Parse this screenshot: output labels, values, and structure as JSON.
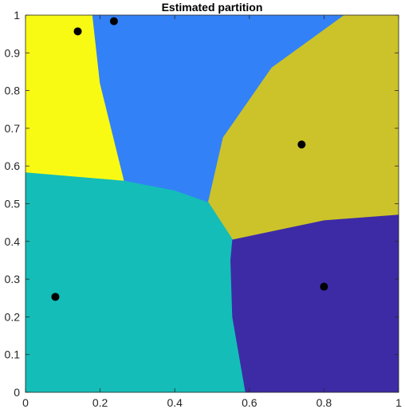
{
  "chart_data": {
    "type": "heatmap",
    "title": "Estimated partition",
    "xlabel": "",
    "ylabel": "",
    "xlim": [
      0,
      1
    ],
    "ylim": [
      0,
      1
    ],
    "x_ticks": [
      0,
      0.2,
      0.4,
      0.6,
      0.8,
      1
    ],
    "x_tick_labels": [
      "0",
      "0.2",
      "0.4",
      "0.6",
      "0.8",
      "1"
    ],
    "y_ticks": [
      0,
      0.1,
      0.2,
      0.3,
      0.4,
      0.5,
      0.6,
      0.7,
      0.8,
      0.9,
      1
    ],
    "y_tick_labels": [
      "0",
      "0.1",
      "0.2",
      "0.3",
      "0.4",
      "0.5",
      "0.6",
      "0.7",
      "0.8",
      "0.9",
      "1"
    ],
    "grid": false,
    "regions": [
      {
        "color": "#F9FA14",
        "polygon": [
          [
            0,
            1
          ],
          [
            0.18,
            1
          ],
          [
            0.2,
            0.82
          ],
          [
            0.265,
            0.56
          ],
          [
            0,
            0.582
          ]
        ]
      },
      {
        "color": "#3381F7",
        "polygon": [
          [
            0.18,
            1
          ],
          [
            0.855,
            1
          ],
          [
            0.66,
            0.86
          ],
          [
            0.53,
            0.675
          ],
          [
            0.49,
            0.503
          ],
          [
            0.4,
            0.534
          ],
          [
            0.265,
            0.56
          ],
          [
            0.2,
            0.82
          ]
        ]
      },
      {
        "color": "#CCC32A",
        "polygon": [
          [
            0.855,
            1
          ],
          [
            1,
            1
          ],
          [
            1,
            0.47
          ],
          [
            0.8,
            0.455
          ],
          [
            0.555,
            0.404
          ],
          [
            0.49,
            0.503
          ],
          [
            0.53,
            0.675
          ],
          [
            0.66,
            0.86
          ]
        ]
      },
      {
        "color": "#14BDB8",
        "polygon": [
          [
            0,
            0.582
          ],
          [
            0.265,
            0.56
          ],
          [
            0.4,
            0.534
          ],
          [
            0.49,
            0.503
          ],
          [
            0.555,
            0.404
          ],
          [
            0.55,
            0.35
          ],
          [
            0.555,
            0.2
          ],
          [
            0.59,
            0
          ],
          [
            0,
            0
          ]
        ]
      },
      {
        "color": "#3D2BA6",
        "polygon": [
          [
            0.555,
            0.404
          ],
          [
            0.8,
            0.455
          ],
          [
            1,
            0.47
          ],
          [
            1,
            0
          ],
          [
            0.59,
            0
          ],
          [
            0.555,
            0.2
          ],
          [
            0.55,
            0.35
          ]
        ]
      }
    ],
    "points": [
      {
        "x": 0.14,
        "y": 0.957
      },
      {
        "x": 0.237,
        "y": 0.984
      },
      {
        "x": 0.74,
        "y": 0.657
      },
      {
        "x": 0.08,
        "y": 0.253
      },
      {
        "x": 0.8,
        "y": 0.28
      }
    ],
    "point_color": "#000000"
  }
}
